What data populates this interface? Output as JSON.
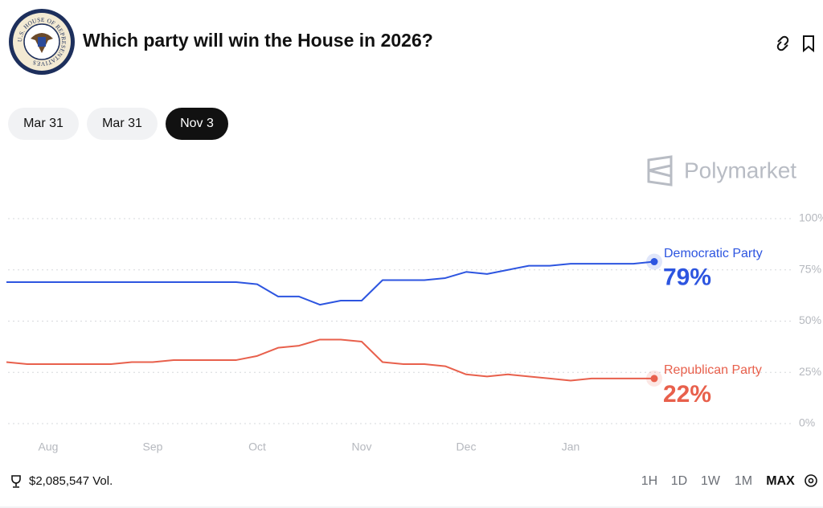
{
  "header": {
    "logo_text": "U.S. HOUSE OF REPRESENTATIVES",
    "title": "Which party will win the House in 2026?"
  },
  "tabs": [
    "Mar 31",
    "Mar 31",
    "Nov 3"
  ],
  "brand": "Polymarket",
  "chart_data": {
    "type": "line",
    "categories": [
      null,
      null,
      "Aug",
      null,
      null,
      null,
      null,
      "Sep",
      null,
      null,
      null,
      null,
      "Oct",
      null,
      null,
      null,
      null,
      "Nov",
      null,
      null,
      null,
      null,
      "Dec",
      null,
      null,
      null,
      null,
      "Jan",
      null,
      null,
      null,
      null
    ],
    "series": [
      {
        "name": "Democratic Party",
        "color": "#2d55e0",
        "values": [
          69,
          69,
          69,
          69,
          69,
          69,
          69,
          69,
          69,
          69,
          69,
          69,
          68,
          62,
          62,
          58,
          60,
          60,
          70,
          70,
          70,
          71,
          74,
          73,
          75,
          77,
          77,
          78,
          78,
          78,
          78,
          79
        ],
        "value_labels": [
          null,
          null,
          null,
          null,
          null,
          null,
          null,
          null,
          null,
          null,
          null,
          null,
          null,
          null,
          null,
          null,
          null,
          null,
          null,
          null,
          null,
          null,
          null,
          null,
          null,
          null,
          null,
          null,
          null,
          null,
          null,
          "79%"
        ]
      },
      {
        "name": "Republican Party",
        "color": "#e8604c",
        "values": [
          30,
          29,
          29,
          29,
          29,
          29,
          30,
          30,
          31,
          31,
          31,
          31,
          33,
          37,
          38,
          41,
          41,
          40,
          30,
          29,
          29,
          28,
          24,
          23,
          24,
          23,
          22,
          21,
          22,
          22,
          22,
          22
        ],
        "value_labels": [
          null,
          null,
          null,
          null,
          null,
          null,
          null,
          null,
          null,
          null,
          null,
          null,
          null,
          null,
          null,
          null,
          null,
          null,
          null,
          null,
          null,
          null,
          null,
          null,
          null,
          null,
          null,
          null,
          null,
          null,
          null,
          "22%"
        ]
      }
    ],
    "ylim": [
      0,
      100
    ],
    "yticks": [
      {
        "value": 0,
        "label": "0%"
      },
      {
        "value": 25,
        "label": "25%"
      },
      {
        "value": 50,
        "label": "50%"
      },
      {
        "value": 75,
        "label": "75%"
      },
      {
        "value": 100,
        "label": "100%"
      }
    ],
    "grid": true
  },
  "footer": {
    "volume": "$2,085,547 Vol.",
    "ranges": [
      "1H",
      "1D",
      "1W",
      "1M",
      "MAX"
    ]
  }
}
